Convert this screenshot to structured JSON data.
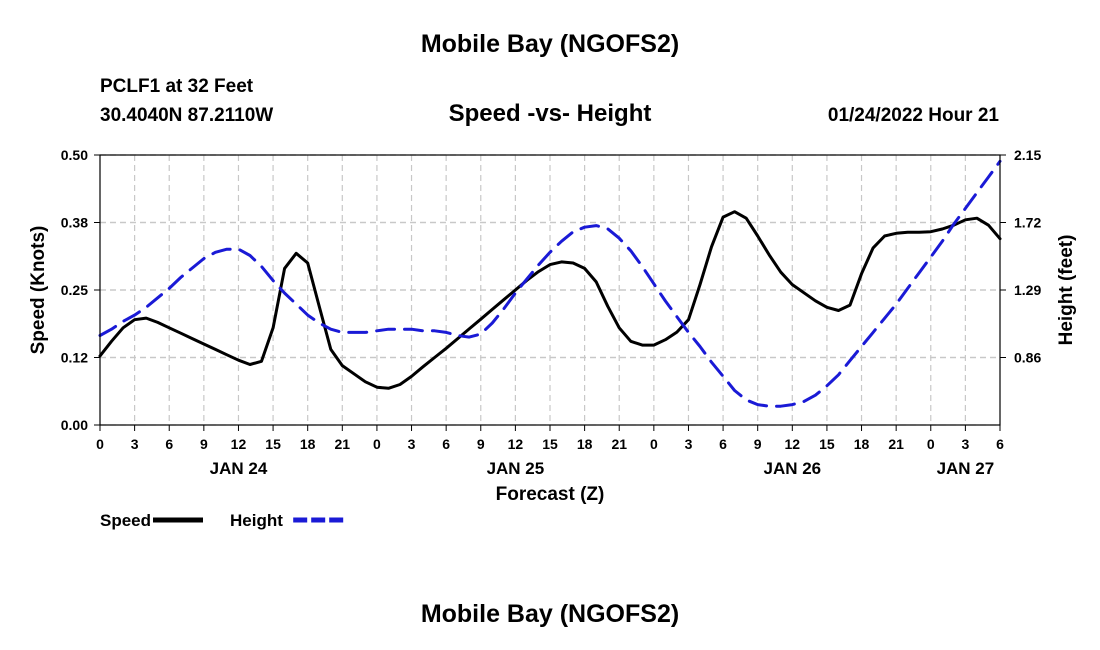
{
  "page": {
    "title": "Mobile Bay (NGOFS2)",
    "bottom_title": "Mobile Bay (NGOFS2)",
    "station_line": "PCLF1 at 32 Feet",
    "coords_line": "30.4040N  87.2110W",
    "date_line": "01/24/2022 Hour 21"
  },
  "chart_data": {
    "type": "line",
    "title": "Speed -vs- Height",
    "xlabel": "Forecast (Z)",
    "ylabel": "Speed (Knots)",
    "y2label": "Height (feet)",
    "x_unit": "hours since 00Z Jan 24",
    "xlim": [
      0,
      78
    ],
    "ylim": [
      0,
      0.5
    ],
    "y2lim": [
      0.43,
      2.15
    ],
    "x_ticks": [
      0,
      3,
      6,
      9,
      12,
      15,
      18,
      21,
      24,
      27,
      30,
      33,
      36,
      39,
      42,
      45,
      48,
      51,
      54,
      57,
      60,
      63,
      66,
      69,
      72,
      75,
      78
    ],
    "x_tick_labels": [
      "0",
      "3",
      "6",
      "9",
      "12",
      "15",
      "18",
      "21",
      "0",
      "3",
      "6",
      "9",
      "12",
      "15",
      "18",
      "21",
      "0",
      "3",
      "6",
      "9",
      "12",
      "15",
      "18",
      "21",
      "0",
      "3",
      "6"
    ],
    "y_ticks": [
      0.0,
      0.125,
      0.25,
      0.375,
      0.5
    ],
    "y_tick_labels": [
      "0.00",
      "0.12",
      "0.25",
      "0.38",
      "0.50"
    ],
    "y2_ticks": [
      0.86,
      1.29,
      1.72,
      2.15
    ],
    "y2_tick_labels": [
      "0.86",
      "1.29",
      "1.72",
      "2.15"
    ],
    "date_labels": [
      {
        "x": 12,
        "label": "JAN 24"
      },
      {
        "x": 36,
        "label": "JAN 25"
      },
      {
        "x": 60,
        "label": "JAN 26"
      },
      {
        "x": 75,
        "label": "JAN 27"
      }
    ],
    "grid": true,
    "legend_position": "bottom-left",
    "series": [
      {
        "name": "Speed",
        "axis": "left",
        "color": "#000000",
        "dash": "solid",
        "x": [
          0,
          1,
          2,
          3,
          4,
          5,
          6,
          7,
          8,
          9,
          10,
          11,
          12,
          13,
          14,
          15,
          16,
          17,
          18,
          19,
          20,
          21,
          22,
          23,
          24,
          25,
          26,
          27,
          28,
          29,
          30,
          31,
          32,
          33,
          34,
          35,
          36,
          37,
          38,
          39,
          40,
          41,
          42,
          43,
          44,
          45,
          46,
          47,
          48,
          49,
          50,
          51,
          52,
          53,
          54,
          55,
          56,
          57,
          58,
          59,
          60,
          61,
          62,
          63,
          64,
          65,
          66,
          67,
          68,
          69,
          70,
          71,
          72,
          73,
          74,
          75,
          76,
          77,
          78
        ],
        "values": [
          0.128,
          0.155,
          0.18,
          0.195,
          0.198,
          0.19,
          0.18,
          0.17,
          0.16,
          0.15,
          0.14,
          0.13,
          0.12,
          0.112,
          0.118,
          0.18,
          0.29,
          0.318,
          0.3,
          0.22,
          0.14,
          0.11,
          0.095,
          0.08,
          0.07,
          0.068,
          0.075,
          0.09,
          0.108,
          0.125,
          0.142,
          0.16,
          0.178,
          0.196,
          0.214,
          0.232,
          0.25,
          0.268,
          0.284,
          0.297,
          0.302,
          0.3,
          0.29,
          0.265,
          0.22,
          0.18,
          0.155,
          0.148,
          0.148,
          0.158,
          0.172,
          0.195,
          0.26,
          0.33,
          0.385,
          0.395,
          0.383,
          0.35,
          0.315,
          0.283,
          0.26,
          0.245,
          0.23,
          0.218,
          0.212,
          0.222,
          0.28,
          0.328,
          0.35,
          0.355,
          0.357,
          0.357,
          0.358,
          0.363,
          0.37,
          0.38,
          0.383,
          0.37,
          0.345
        ]
      },
      {
        "name": "Height",
        "axis": "right",
        "color": "#1a1ad6",
        "dash": "dashed",
        "x": [
          0,
          1,
          2,
          3,
          4,
          5,
          6,
          7,
          8,
          9,
          10,
          11,
          12,
          13,
          14,
          15,
          16,
          17,
          18,
          19,
          20,
          21,
          22,
          23,
          24,
          25,
          26,
          27,
          28,
          29,
          30,
          31,
          32,
          33,
          34,
          35,
          36,
          37,
          38,
          39,
          40,
          41,
          42,
          43,
          44,
          45,
          46,
          47,
          48,
          49,
          50,
          51,
          52,
          53,
          54,
          55,
          56,
          57,
          58,
          59,
          60,
          61,
          62,
          63,
          64,
          65,
          66,
          67,
          68,
          69,
          70,
          71,
          72,
          73,
          74,
          75,
          76,
          77,
          78
        ],
        "values": [
          1.0,
          1.04,
          1.09,
          1.13,
          1.18,
          1.24,
          1.3,
          1.37,
          1.43,
          1.49,
          1.53,
          1.55,
          1.55,
          1.51,
          1.44,
          1.35,
          1.27,
          1.2,
          1.13,
          1.08,
          1.04,
          1.02,
          1.02,
          1.02,
          1.03,
          1.04,
          1.04,
          1.04,
          1.03,
          1.03,
          1.02,
          1.0,
          0.99,
          1.01,
          1.08,
          1.17,
          1.27,
          1.36,
          1.45,
          1.53,
          1.6,
          1.66,
          1.69,
          1.7,
          1.68,
          1.62,
          1.54,
          1.44,
          1.33,
          1.22,
          1.12,
          1.02,
          0.93,
          0.83,
          0.74,
          0.65,
          0.59,
          0.56,
          0.55,
          0.55,
          0.56,
          0.58,
          0.62,
          0.68,
          0.75,
          0.84,
          0.93,
          1.02,
          1.11,
          1.2,
          1.3,
          1.4,
          1.5,
          1.6,
          1.71,
          1.81,
          1.91,
          2.01,
          2.11
        ]
      }
    ]
  }
}
